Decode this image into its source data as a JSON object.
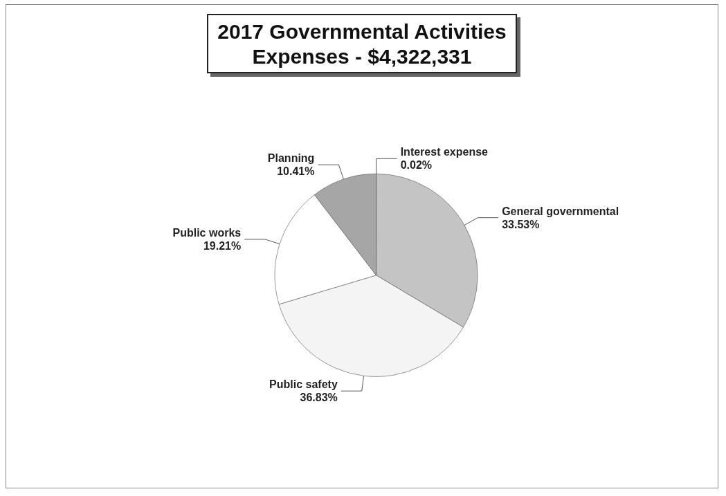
{
  "chart_data": {
    "type": "pie",
    "title": "2017 Governmental Activities\nExpenses - $4,322,331",
    "categories": [
      "Interest expense",
      "General governmental",
      "Public safety",
      "Public works",
      "Planning"
    ],
    "values": [
      0.02,
      33.53,
      36.83,
      19.21,
      10.41
    ],
    "value_labels": [
      "0.02%",
      "33.53%",
      "36.83%",
      "19.21%",
      "10.41%"
    ],
    "colors": [
      "#333333",
      "#c4c4c4",
      "#f4f4f4",
      "#ffffff",
      "#a6a6a6"
    ],
    "legend": false
  }
}
